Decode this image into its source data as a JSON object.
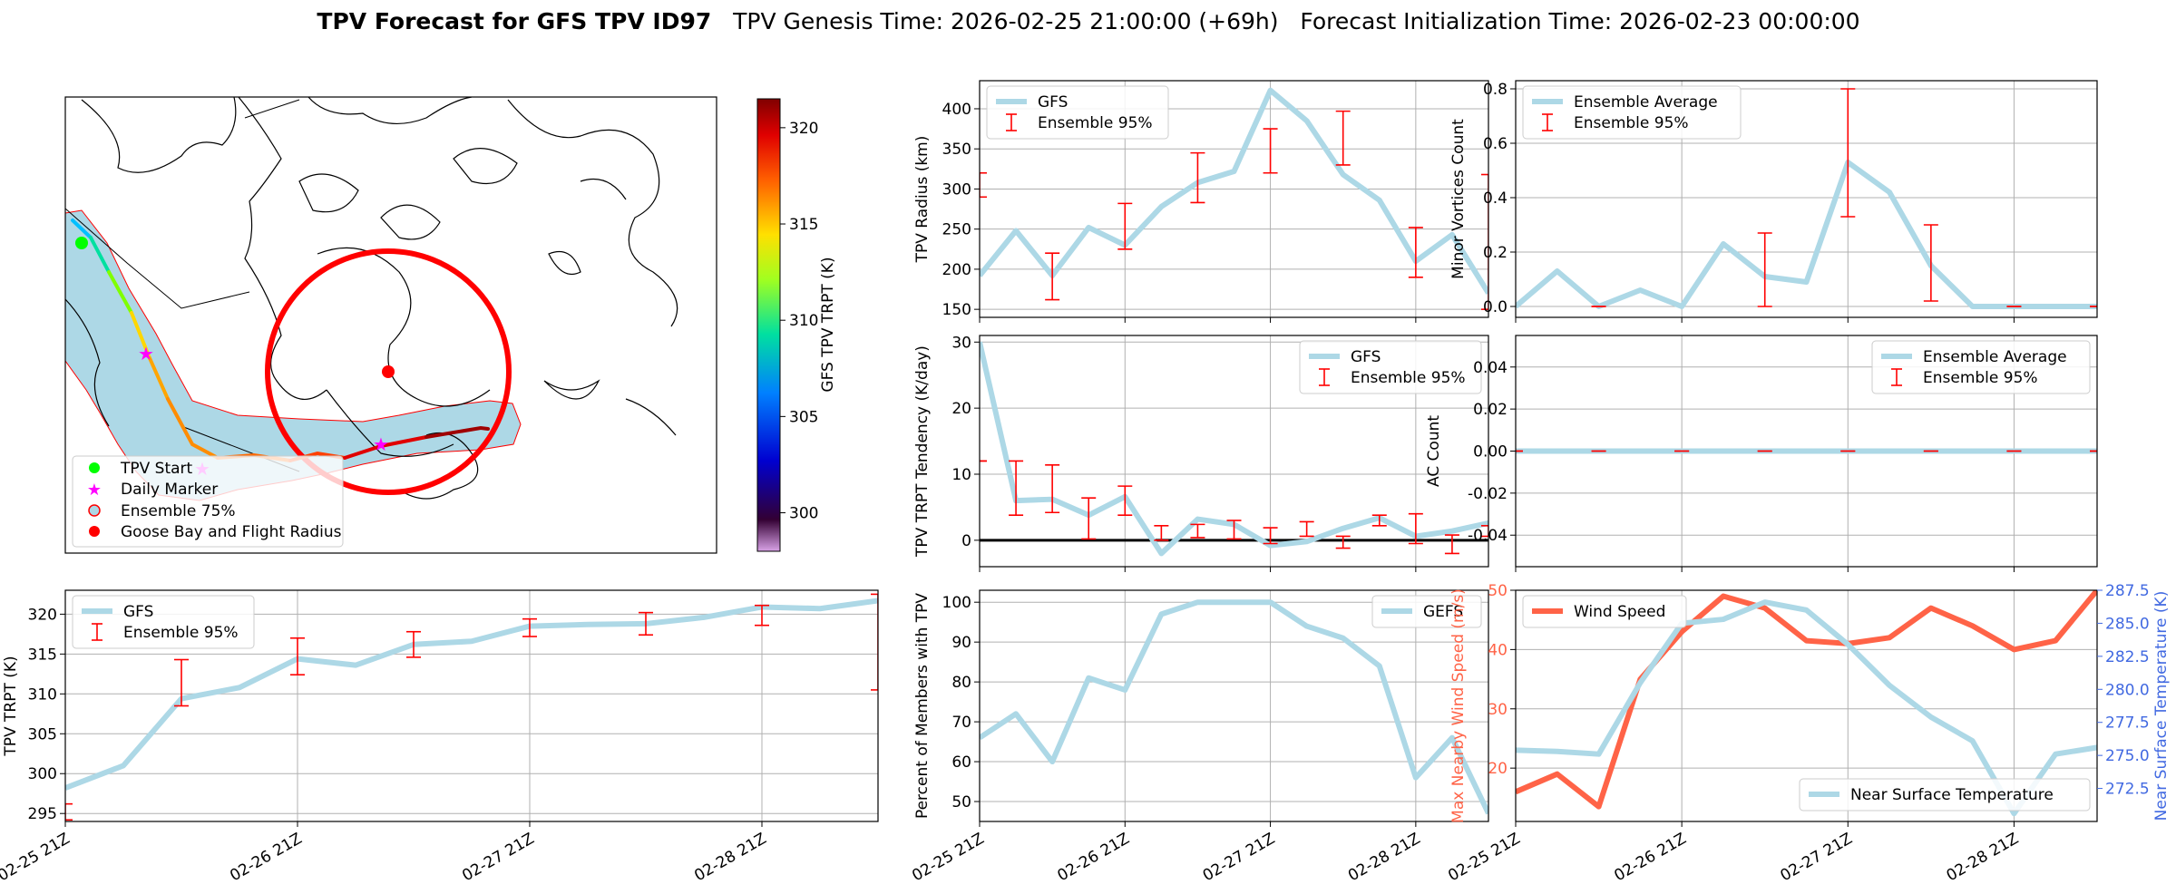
{
  "title": {
    "bold": "TPV Forecast for GFS TPV ID97",
    "genesis": "TPV Genesis Time: 2026-02-25 21:00:00 (+69h)",
    "init": "Forecast Initialization Time: 2026-02-23 00:00:00"
  },
  "colors": {
    "series": "#add8e6",
    "errorbar": "#ff0000",
    "wind": "#ff6347",
    "temp_axis": "#4169e1",
    "grid": "#b0b0b0"
  },
  "time_ticks": [
    "02-25 21Z",
    "02-26 21Z",
    "02-27 21Z",
    "02-28 21Z"
  ],
  "map": {
    "legend": [
      "TPV Start",
      "Daily Marker",
      "Ensemble 75%",
      "Goose Bay and Flight Radius"
    ],
    "colorbar": {
      "label": "GFS TPV TRPT (K)",
      "min": 298,
      "max": 321.5,
      "ticks": [
        300,
        305,
        310,
        315,
        320
      ]
    }
  },
  "chart_data": [
    {
      "id": "trpt",
      "type": "line",
      "ylabel": "TPV TRPT (K)",
      "ylim": [
        294,
        323
      ],
      "yticks": [
        295,
        300,
        305,
        310,
        315,
        320
      ],
      "series": [
        {
          "name": "GFS",
          "values": [
            298.2,
            301.0,
            309.4,
            310.8,
            314.4,
            313.6,
            316.2,
            316.6,
            318.5,
            318.7,
            318.8,
            319.6,
            320.9,
            320.7,
            321.7
          ]
        }
      ],
      "ensemble_95": [
        {
          "t": 0,
          "low": 294.2,
          "high": 296.2
        },
        {
          "t": 2,
          "low": 308.5,
          "high": 314.3
        },
        {
          "t": 4,
          "low": 312.4,
          "high": 317.0
        },
        {
          "t": 6,
          "low": 314.6,
          "high": 317.8
        },
        {
          "t": 8,
          "low": 317.2,
          "high": 319.4
        },
        {
          "t": 10,
          "low": 317.4,
          "high": 320.2
        },
        {
          "t": 12,
          "low": 318.6,
          "high": 321.1
        },
        {
          "t": 14,
          "low": 310.5,
          "high": 322.5
        }
      ],
      "legend": [
        "GFS",
        "Ensemble 95%"
      ],
      "legend_loc": "upper-left"
    },
    {
      "id": "radius",
      "type": "line",
      "ylabel": "TPV Radius (km)",
      "ylim": [
        140,
        435
      ],
      "yticks": [
        150,
        200,
        250,
        300,
        350,
        400
      ],
      "series": [
        {
          "name": "GFS",
          "values": [
            192,
            248,
            192,
            252,
            230,
            278,
            308,
            322,
            423,
            385,
            318,
            286,
            210,
            243,
            170
          ]
        }
      ],
      "ensemble_95": [
        {
          "t": 0,
          "low": 290,
          "high": 320
        },
        {
          "t": 2,
          "low": 162,
          "high": 220
        },
        {
          "t": 4,
          "low": 225,
          "high": 282
        },
        {
          "t": 6,
          "low": 283,
          "high": 345
        },
        {
          "t": 8,
          "low": 320,
          "high": 375
        },
        {
          "t": 10,
          "low": 330,
          "high": 397
        },
        {
          "t": 12,
          "low": 190,
          "high": 252
        },
        {
          "t": 14,
          "low": 150,
          "high": 318
        }
      ],
      "legend": [
        "GFS",
        "Ensemble 95%"
      ],
      "legend_loc": "upper-left"
    },
    {
      "id": "tendency",
      "type": "line",
      "ylabel": "TPV TRPT Tendency (K/day)",
      "ylim": [
        -4,
        31
      ],
      "yticks": [
        0,
        10,
        20,
        30
      ],
      "zero_line": true,
      "series": [
        {
          "name": "GFS",
          "values": [
            30.0,
            6.0,
            6.2,
            3.8,
            6.6,
            -2.0,
            3.2,
            2.4,
            -0.8,
            -0.2,
            1.8,
            3.4,
            0.6,
            1.4,
            2.6
          ]
        }
      ],
      "ensemble_95": [
        {
          "t": 0,
          "low": 12,
          "high": 12
        },
        {
          "t": 1,
          "low": 3.8,
          "high": 12.0
        },
        {
          "t": 2,
          "low": 4.2,
          "high": 11.4
        },
        {
          "t": 3,
          "low": 0.2,
          "high": 6.4
        },
        {
          "t": 4,
          "low": 3.8,
          "high": 8.2
        },
        {
          "t": 5,
          "low": 0.0,
          "high": 2.2
        },
        {
          "t": 6,
          "low": 0.4,
          "high": 2.4
        },
        {
          "t": 7,
          "low": 0.2,
          "high": 3.0
        },
        {
          "t": 8,
          "low": -0.5,
          "high": 1.9
        },
        {
          "t": 9,
          "low": 0.6,
          "high": 2.8
        },
        {
          "t": 10,
          "low": -1.2,
          "high": 0.6
        },
        {
          "t": 11,
          "low": 2.2,
          "high": 3.8
        },
        {
          "t": 12,
          "low": -0.5,
          "high": 4.0
        },
        {
          "t": 13,
          "low": -2.0,
          "high": 0.8
        },
        {
          "t": 14,
          "low": 0.6,
          "high": 2.2
        }
      ],
      "legend": [
        "GFS",
        "Ensemble 95%"
      ],
      "legend_loc": "upper-right"
    },
    {
      "id": "percent",
      "type": "line",
      "ylabel": "Percent of Members with TPV",
      "ylim": [
        45,
        103
      ],
      "yticks": [
        50,
        60,
        70,
        80,
        90,
        100
      ],
      "series": [
        {
          "name": "GEFS",
          "values": [
            66,
            72,
            60,
            81,
            78,
            97,
            100,
            100,
            100,
            94,
            91,
            84,
            56,
            66,
            47
          ]
        }
      ],
      "legend": [
        "GEFS"
      ],
      "legend_loc": "upper-right"
    },
    {
      "id": "minor",
      "type": "line",
      "ylabel": "Minor Vortices Count",
      "ylim": [
        -0.04,
        0.83
      ],
      "yticks": [
        0.0,
        0.2,
        0.4,
        0.6,
        0.8
      ],
      "series": [
        {
          "name": "Ensemble Average",
          "values": [
            0.0,
            0.13,
            0.0,
            0.06,
            0.0,
            0.23,
            0.11,
            0.09,
            0.53,
            0.42,
            0.15,
            0.0,
            0.0,
            0.0,
            0.0
          ]
        }
      ],
      "ensemble_95": [
        {
          "t": 2,
          "low": 0.0,
          "high": 0.0
        },
        {
          "t": 6,
          "low": 0.0,
          "high": 0.27
        },
        {
          "t": 8,
          "low": 0.33,
          "high": 0.8
        },
        {
          "t": 10,
          "low": 0.02,
          "high": 0.3
        },
        {
          "t": 12,
          "low": 0.0,
          "high": 0.0
        },
        {
          "t": 14,
          "low": 0.0,
          "high": 0.0
        }
      ],
      "legend": [
        "Ensemble Average",
        "Ensemble 95%"
      ],
      "legend_loc": "upper-left"
    },
    {
      "id": "ac",
      "type": "line",
      "ylabel": "AC Count",
      "ylim": [
        -0.055,
        0.055
      ],
      "yticks": [
        -0.04,
        -0.02,
        0.0,
        0.02,
        0.04
      ],
      "series": [
        {
          "name": "Ensemble Average",
          "values": [
            0,
            0,
            0,
            0,
            0,
            0,
            0,
            0,
            0,
            0,
            0,
            0,
            0,
            0,
            0
          ]
        }
      ],
      "ensemble_95": [
        {
          "t": 0,
          "low": 0,
          "high": 0
        },
        {
          "t": 2,
          "low": 0,
          "high": 0
        },
        {
          "t": 4,
          "low": 0,
          "high": 0
        },
        {
          "t": 6,
          "low": 0,
          "high": 0
        },
        {
          "t": 8,
          "low": 0,
          "high": 0
        },
        {
          "t": 10,
          "low": 0,
          "high": 0
        },
        {
          "t": 12,
          "low": 0,
          "high": 0
        },
        {
          "t": 14,
          "low": 0,
          "high": 0
        }
      ],
      "legend": [
        "Ensemble Average",
        "Ensemble 95%"
      ],
      "legend_loc": "upper-right"
    },
    {
      "id": "wind_temp",
      "type": "line",
      "ylabel": "Max Nearby Wind Speed (m/s)",
      "ylabel_right": "Near Surface Temperature (K)",
      "ylim": [
        11,
        50
      ],
      "yticks": [
        20,
        30,
        40,
        50
      ],
      "ylim_right": [
        270.0,
        287.5
      ],
      "yticks_right": [
        272.5,
        275.0,
        277.5,
        280.0,
        282.5,
        285.0,
        287.5
      ],
      "series": [
        {
          "name": "Wind Speed",
          "axis": "left",
          "values": [
            16,
            19,
            13.5,
            35,
            43,
            49,
            47,
            41.5,
            41,
            42,
            47,
            44,
            40,
            41.5,
            50
          ]
        },
        {
          "name": "Near Surface Temperature",
          "axis": "right",
          "values": [
            275.4,
            275.3,
            275.1,
            280.5,
            285.0,
            285.3,
            286.6,
            286.0,
            283.4,
            280.3,
            277.9,
            276.1,
            270.6,
            275.1,
            275.6
          ]
        }
      ],
      "legend": [
        "Wind Speed",
        "Near Surface Temperature"
      ],
      "legend_loc": "upper-left / lower-right"
    }
  ]
}
